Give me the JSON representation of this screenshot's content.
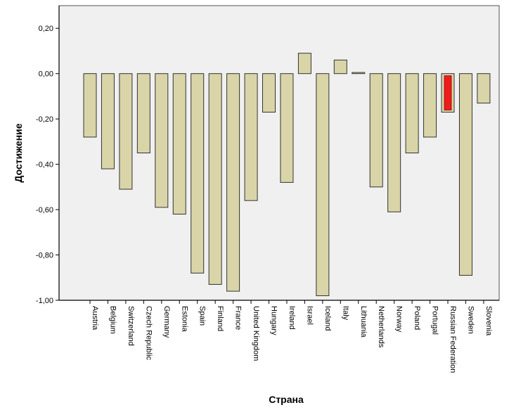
{
  "chart_data": {
    "type": "bar",
    "title": "",
    "xlabel": "Страна",
    "ylabel": "Достижение",
    "ylim": [
      -1.0,
      0.3
    ],
    "yticks": [
      "0,20",
      "0,00",
      "-0,20",
      "-0,40",
      "-0,60",
      "-0,80",
      "-1,00"
    ],
    "ytick_values": [
      0.2,
      0.0,
      -0.2,
      -0.4,
      -0.6,
      -0.8,
      -1.0
    ],
    "categories": [
      "Austria",
      "Belgium",
      "Switzerland",
      "Czech Republic",
      "Germany",
      "Estonia",
      "Spain",
      "Finland",
      "France",
      "United Kingdom",
      "Hungary",
      "Ireland",
      "Israel",
      "Iceland",
      "Italy",
      "Lithuania",
      "Netherlands",
      "Norway",
      "Poland",
      "Portugal",
      "Russian Federation",
      "Sweden",
      "Slovenia"
    ],
    "values": [
      -0.28,
      -0.42,
      -0.51,
      -0.35,
      -0.59,
      -0.62,
      -0.88,
      -0.93,
      -0.96,
      -0.56,
      -0.17,
      -0.48,
      0.09,
      -0.98,
      0.06,
      0.005,
      -0.5,
      -0.61,
      -0.35,
      -0.28,
      -0.17,
      -0.89,
      -0.13
    ],
    "highlight_category": "Russian Federation",
    "colors": {
      "bar_fill": "#d9d5a8",
      "bar_stroke": "#333333",
      "highlight_fill": "#ee1c1c",
      "plot_background": "#f0f0f0",
      "axis": "#000000"
    }
  }
}
